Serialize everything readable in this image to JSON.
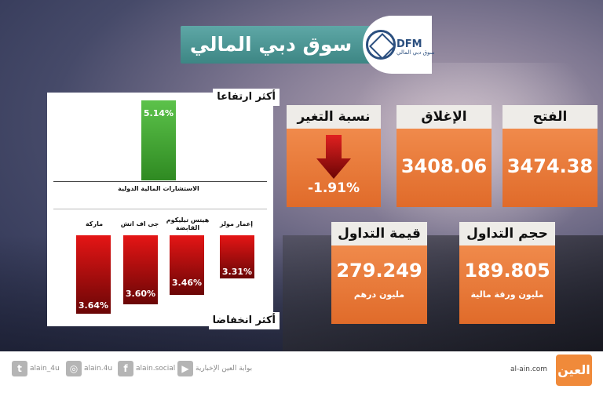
{
  "header": {
    "title": "سوق دبي المالي",
    "logo_text": "DFM",
    "logo_sub": "سوق دبي المالي"
  },
  "top_gainers": {
    "label": "أكثر ارتفاعا",
    "items": [
      {
        "name": "الاستشارات المالية الدولية",
        "value": "5.14%"
      }
    ]
  },
  "top_losers": {
    "label": "أكثر انخفاضا",
    "items": [
      {
        "name": "ماركة",
        "value": "3.64%"
      },
      {
        "name": "جى اف اتش",
        "value": "3.60%"
      },
      {
        "name": "هيتس تيليكوم القابضة",
        "value": "3.46%"
      },
      {
        "name": "إعمار مولز",
        "value": "3.31%"
      }
    ]
  },
  "change": {
    "label": "نسبة التغير",
    "value": "-1.91%",
    "direction": "down"
  },
  "close": {
    "label": "الإغلاق",
    "value": "3408.06"
  },
  "open": {
    "label": "الفتح",
    "value": "3474.38"
  },
  "trade_value": {
    "label": "قيمة التداول",
    "value": "279.249",
    "unit": "مليون درهم"
  },
  "trade_volume": {
    "label": "حجم التداول",
    "value": "189.805",
    "unit": "مليون ورقة مالية"
  },
  "footer": {
    "twitter": "alain_4u",
    "instagram": "alain.4u",
    "facebook": "alain.social",
    "youtube": "بوابة العين الإخبارية",
    "site": "al-ain.com",
    "brand": "العين"
  },
  "colors": {
    "header": "#4a9593",
    "card": "#e8743a",
    "gain": "#3fa32f",
    "loss": "#c41212"
  }
}
